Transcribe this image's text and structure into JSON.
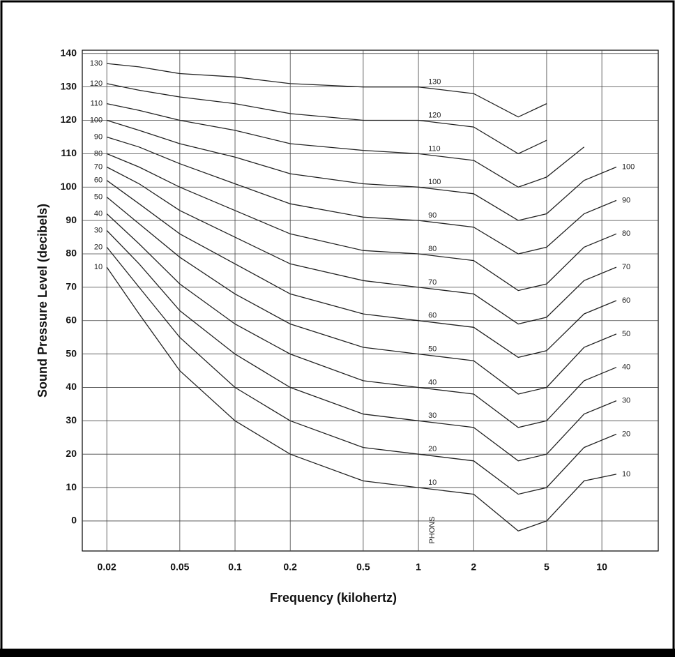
{
  "chart_data": {
    "type": "line",
    "xscale": "log",
    "ylabel": "Sound Pressure Level (decibels)",
    "xlabel": "Frequency (kilohertz)",
    "annotation": "PHONS",
    "x": [
      0.02,
      0.03,
      0.05,
      0.1,
      0.2,
      0.5,
      1,
      2,
      3.5,
      5,
      8,
      12
    ],
    "xlim": [
      0.0147,
      20.3
    ],
    "xticks": [
      0.02,
      0.05,
      0.1,
      0.2,
      0.5,
      1,
      2,
      5,
      10
    ],
    "ylim": [
      -9,
      141
    ],
    "yticks": [
      0,
      10,
      20,
      30,
      40,
      50,
      60,
      70,
      80,
      90,
      100,
      110,
      120,
      130,
      140
    ],
    "grid": true,
    "series": [
      {
        "name": "10",
        "color": "#222",
        "values": [
          76,
          62,
          45,
          30,
          20,
          12,
          10,
          8,
          -3,
          0,
          12,
          14
        ]
      },
      {
        "name": "20",
        "color": "#222",
        "values": [
          82,
          70,
          55,
          40,
          30,
          22,
          20,
          18,
          8,
          10,
          22,
          26
        ]
      },
      {
        "name": "30",
        "color": "#222",
        "values": [
          87,
          77,
          63,
          50,
          40,
          32,
          30,
          28,
          18,
          20,
          32,
          36
        ]
      },
      {
        "name": "40",
        "color": "#222",
        "values": [
          92,
          83,
          71,
          59,
          50,
          42,
          40,
          38,
          28,
          30,
          42,
          46
        ]
      },
      {
        "name": "50",
        "color": "#222",
        "values": [
          97,
          89,
          79,
          68,
          59,
          52,
          50,
          48,
          38,
          40,
          52,
          56
        ]
      },
      {
        "name": "60",
        "color": "#222",
        "values": [
          102,
          95,
          86,
          77,
          68,
          62,
          60,
          58,
          49,
          51,
          62,
          66
        ]
      },
      {
        "name": "70",
        "color": "#222",
        "values": [
          106,
          101,
          93,
          85,
          77,
          72,
          70,
          68,
          59,
          61,
          72,
          76
        ]
      },
      {
        "name": "80",
        "color": "#222",
        "values": [
          110,
          106,
          100,
          93,
          86,
          81,
          80,
          78,
          69,
          71,
          82,
          86
        ]
      },
      {
        "name": "90",
        "color": "#222",
        "values": [
          115,
          112,
          107,
          101,
          95,
          91,
          90,
          88,
          80,
          82,
          92,
          96
        ]
      },
      {
        "name": "100",
        "color": "#222",
        "values": [
          120,
          117,
          113,
          109,
          104,
          101,
          100,
          98,
          90,
          92,
          102,
          106
        ]
      },
      {
        "name": "110",
        "color": "#222",
        "values": [
          125,
          123,
          120,
          117,
          113,
          111,
          110,
          108,
          100,
          103,
          112,
          null
        ]
      },
      {
        "name": "120",
        "color": "#222",
        "values": [
          131,
          129,
          127,
          125,
          122,
          120,
          120,
          118,
          110,
          114,
          null,
          null
        ]
      },
      {
        "name": "130",
        "color": "#222",
        "values": [
          137,
          136,
          134,
          133,
          131,
          130,
          130,
          128,
          121,
          125,
          null,
          null
        ]
      }
    ]
  }
}
